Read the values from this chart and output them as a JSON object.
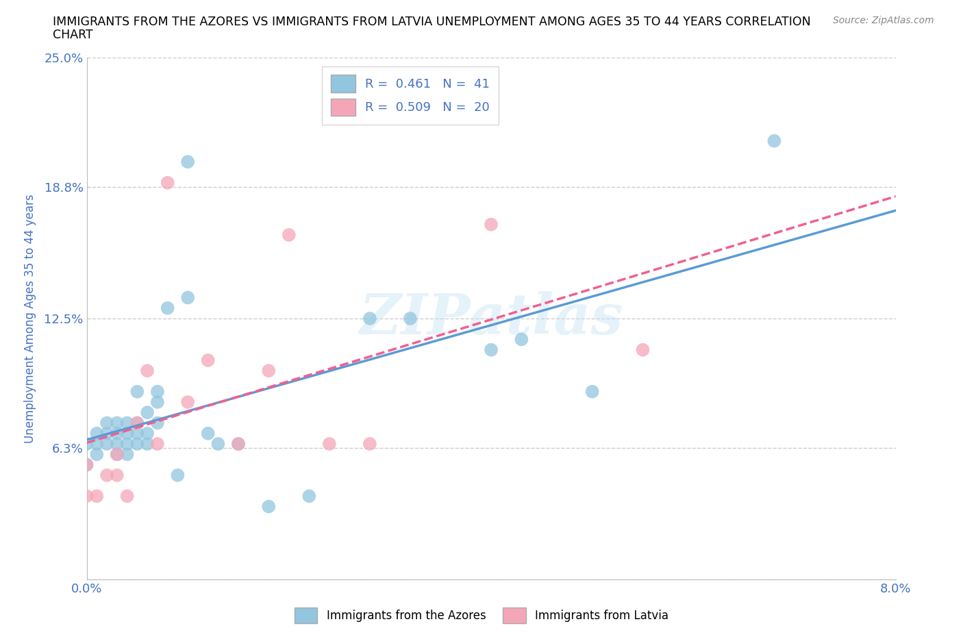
{
  "title_line1": "IMMIGRANTS FROM THE AZORES VS IMMIGRANTS FROM LATVIA UNEMPLOYMENT AMONG AGES 35 TO 44 YEARS CORRELATION",
  "title_line2": "CHART",
  "source_text": "Source: ZipAtlas.com",
  "ylabel": "Unemployment Among Ages 35 to 44 years",
  "xlim": [
    0.0,
    0.08
  ],
  "ylim": [
    0.0,
    0.25
  ],
  "xticks": [
    0.0,
    0.01,
    0.02,
    0.03,
    0.04,
    0.05,
    0.06,
    0.07,
    0.08
  ],
  "xticklabels": [
    "0.0%",
    "",
    "",
    "",
    "",
    "",
    "",
    "",
    "8.0%"
  ],
  "ytick_positions": [
    0.0,
    0.063,
    0.125,
    0.188,
    0.25
  ],
  "yticklabels": [
    "",
    "6.3%",
    "12.5%",
    "18.8%",
    "25.0%"
  ],
  "azores_color": "#92c5de",
  "latvia_color": "#f4a6b8",
  "azores_line_color": "#5b9bd5",
  "latvia_line_color": "#f06090",
  "azores_R": 0.461,
  "azores_N": 41,
  "latvia_R": 0.509,
  "latvia_N": 20,
  "azores_x": [
    0.0,
    0.0,
    0.001,
    0.001,
    0.001,
    0.002,
    0.002,
    0.002,
    0.003,
    0.003,
    0.003,
    0.003,
    0.004,
    0.004,
    0.004,
    0.004,
    0.005,
    0.005,
    0.005,
    0.005,
    0.006,
    0.006,
    0.006,
    0.007,
    0.007,
    0.007,
    0.008,
    0.009,
    0.01,
    0.01,
    0.012,
    0.013,
    0.015,
    0.018,
    0.022,
    0.028,
    0.032,
    0.04,
    0.043,
    0.05,
    0.068
  ],
  "azores_y": [
    0.055,
    0.065,
    0.06,
    0.065,
    0.07,
    0.065,
    0.07,
    0.075,
    0.06,
    0.065,
    0.07,
    0.075,
    0.06,
    0.065,
    0.07,
    0.075,
    0.065,
    0.07,
    0.075,
    0.09,
    0.065,
    0.07,
    0.08,
    0.075,
    0.085,
    0.09,
    0.13,
    0.05,
    0.2,
    0.135,
    0.07,
    0.065,
    0.065,
    0.035,
    0.04,
    0.125,
    0.125,
    0.11,
    0.115,
    0.09,
    0.21
  ],
  "latvia_x": [
    0.0,
    0.0,
    0.001,
    0.002,
    0.003,
    0.003,
    0.004,
    0.005,
    0.006,
    0.007,
    0.008,
    0.01,
    0.012,
    0.015,
    0.018,
    0.02,
    0.024,
    0.028,
    0.04,
    0.055
  ],
  "latvia_y": [
    0.04,
    0.055,
    0.04,
    0.05,
    0.05,
    0.06,
    0.04,
    0.075,
    0.1,
    0.065,
    0.19,
    0.085,
    0.105,
    0.065,
    0.1,
    0.165,
    0.065,
    0.065,
    0.17,
    0.11
  ],
  "watermark": "ZIPatlas",
  "background_color": "#ffffff",
  "grid_color": "#cccccc",
  "axis_color": "#4472c4",
  "tick_color": "#4472c4"
}
